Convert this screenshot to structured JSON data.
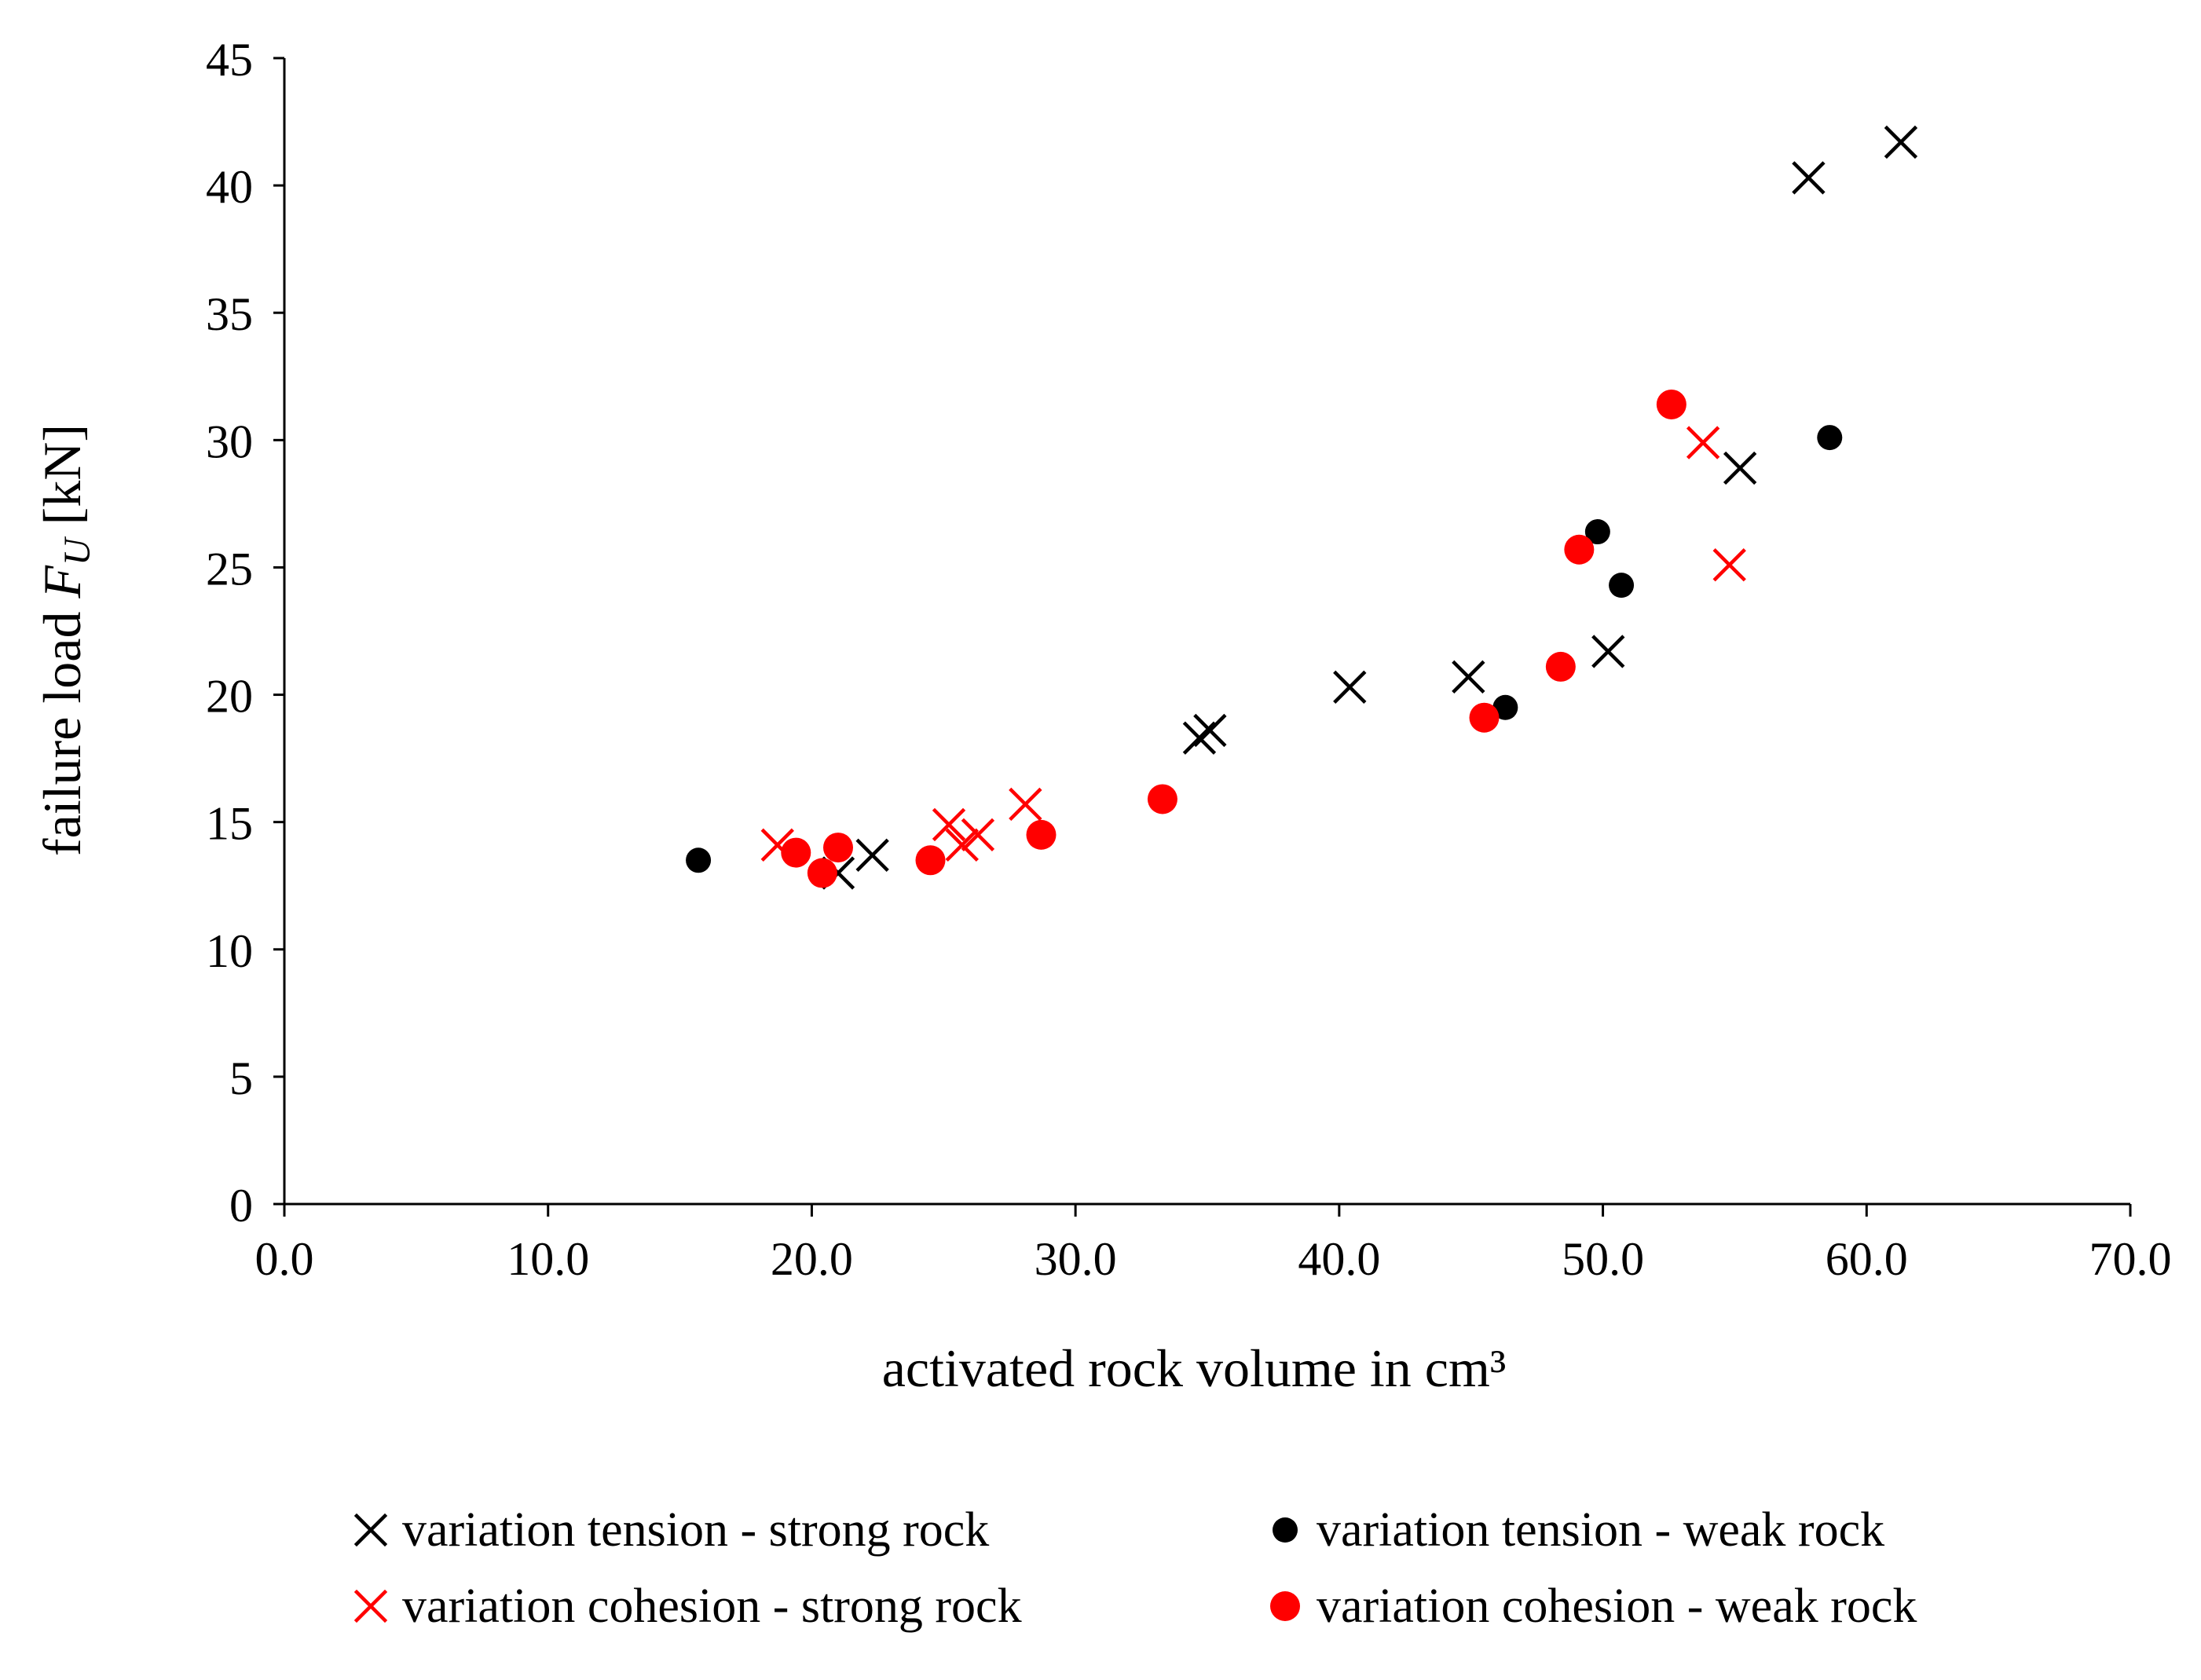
{
  "chart_data": {
    "type": "scatter",
    "title": "",
    "xlabel": "activated rock volume in cm³",
    "ylabel_prefix": "failure load ",
    "ylabel_symbol": "F",
    "ylabel_subscript": "U",
    "ylabel_suffix": " [kN]",
    "xlim": [
      0,
      70
    ],
    "ylim": [
      0,
      45
    ],
    "xticks": [
      "0.0",
      "10.0",
      "20.0",
      "30.0",
      "40.0",
      "50.0",
      "60.0",
      "70.0"
    ],
    "yticks": [
      "0",
      "5",
      "10",
      "15",
      "20",
      "25",
      "30",
      "35",
      "40",
      "45"
    ],
    "grid": false,
    "legend_position": "bottom",
    "series": [
      {
        "name": "variation tension - strong rock",
        "marker": "cross",
        "color": "#000000",
        "points": [
          {
            "x": 21.0,
            "y": 13.0
          },
          {
            "x": 22.3,
            "y": 13.7
          },
          {
            "x": 34.7,
            "y": 18.3
          },
          {
            "x": 35.1,
            "y": 18.6
          },
          {
            "x": 40.4,
            "y": 20.3
          },
          {
            "x": 44.9,
            "y": 20.7
          },
          {
            "x": 50.2,
            "y": 21.7
          },
          {
            "x": 55.2,
            "y": 28.9
          },
          {
            "x": 57.8,
            "y": 40.3
          },
          {
            "x": 61.3,
            "y": 41.7
          }
        ]
      },
      {
        "name": "variation tension - weak rock",
        "marker": "circle",
        "color": "#000000",
        "points": [
          {
            "x": 15.7,
            "y": 13.5
          },
          {
            "x": 46.3,
            "y": 19.5
          },
          {
            "x": 49.8,
            "y": 26.4
          },
          {
            "x": 50.7,
            "y": 24.3
          },
          {
            "x": 58.6,
            "y": 30.1
          }
        ]
      },
      {
        "name": "variation cohesion - strong rock",
        "marker": "cross",
        "color": "#ff0000",
        "points": [
          {
            "x": 18.7,
            "y": 14.1
          },
          {
            "x": 25.2,
            "y": 14.9
          },
          {
            "x": 25.7,
            "y": 14.1
          },
          {
            "x": 26.3,
            "y": 14.5
          },
          {
            "x": 28.1,
            "y": 15.7
          },
          {
            "x": 53.8,
            "y": 29.9
          },
          {
            "x": 54.8,
            "y": 25.1
          }
        ]
      },
      {
        "name": "variation cohesion - weak rock",
        "marker": "circle",
        "color": "#ff0000",
        "points": [
          {
            "x": 19.4,
            "y": 13.8
          },
          {
            "x": 20.4,
            "y": 13.0
          },
          {
            "x": 21.0,
            "y": 14.0
          },
          {
            "x": 24.5,
            "y": 13.5
          },
          {
            "x": 28.7,
            "y": 14.5
          },
          {
            "x": 33.3,
            "y": 15.9
          },
          {
            "x": 45.5,
            "y": 19.1
          },
          {
            "x": 48.4,
            "y": 21.1
          },
          {
            "x": 49.1,
            "y": 25.7
          },
          {
            "x": 52.6,
            "y": 31.4
          }
        ]
      }
    ]
  }
}
